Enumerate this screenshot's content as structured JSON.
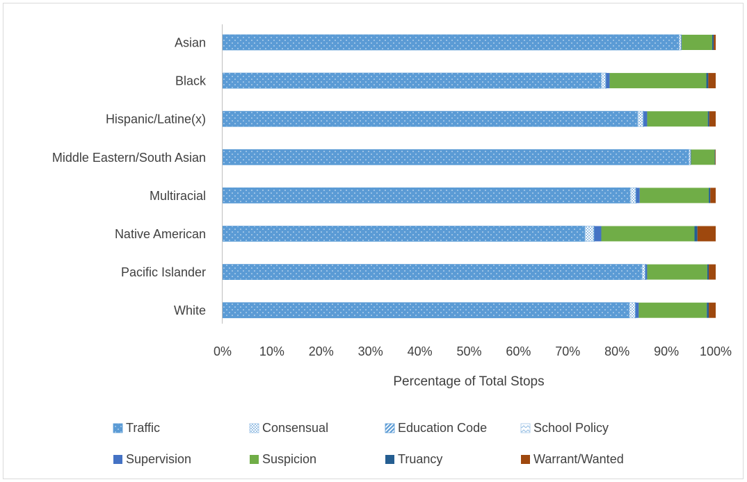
{
  "chart_data": {
    "type": "bar",
    "orientation": "horizontal",
    "stacked": true,
    "normalized": true,
    "xlabel": "Percentage of Total Stops",
    "ylabel": "",
    "xlim": [
      0,
      100
    ],
    "x_ticks": [
      "0%",
      "10%",
      "20%",
      "30%",
      "40%",
      "50%",
      "60%",
      "70%",
      "80%",
      "90%",
      "100%"
    ],
    "grid": false,
    "legend_position": "bottom",
    "categories": [
      "Asian",
      "Black",
      "Hispanic/Latine(x)",
      "Middle Eastern/South Asian",
      "Multiracial",
      "Native American",
      "Pacific Islander",
      "White"
    ],
    "series": [
      {
        "name": "Traffic",
        "color": "#5b9bd5",
        "pattern": "dots",
        "values": [
          92.6,
          76.8,
          84.2,
          94.6,
          82.7,
          73.5,
          85.1,
          82.5
        ]
      },
      {
        "name": "Consensual",
        "color": "#9dc3e6",
        "pattern": "checker",
        "values": [
          0.4,
          0.9,
          1.1,
          0.3,
          1.1,
          1.8,
          0.6,
          1.2
        ]
      },
      {
        "name": "Education Code",
        "color": "#5b9bd5",
        "pattern": "diagonal",
        "values": [
          0.0,
          0.1,
          0.1,
          0.0,
          0.1,
          0.1,
          0.1,
          0.1
        ]
      },
      {
        "name": "School Policy",
        "color": "#9dc3e6",
        "pattern": "zigzag",
        "values": [
          0.0,
          0.0,
          0.0,
          0.0,
          0.0,
          0.0,
          0.0,
          0.0
        ]
      },
      {
        "name": "Supervision",
        "color": "#4472c4",
        "pattern": "solid",
        "values": [
          0.1,
          0.7,
          0.7,
          0.1,
          0.7,
          1.4,
          0.3,
          0.6
        ]
      },
      {
        "name": "Suspicion",
        "color": "#70ad47",
        "pattern": "solid",
        "values": [
          6.2,
          19.6,
          12.3,
          4.8,
          14.0,
          18.9,
          12.2,
          13.8
        ]
      },
      {
        "name": "Truancy",
        "color": "#255e91",
        "pattern": "solid",
        "values": [
          0.3,
          0.4,
          0.3,
          0.1,
          0.3,
          0.6,
          0.3,
          0.4
        ]
      },
      {
        "name": "Warrant/Wanted",
        "color": "#9e480e",
        "pattern": "solid",
        "values": [
          0.4,
          1.5,
          1.3,
          0.1,
          1.1,
          3.7,
          1.4,
          1.4
        ]
      }
    ]
  }
}
